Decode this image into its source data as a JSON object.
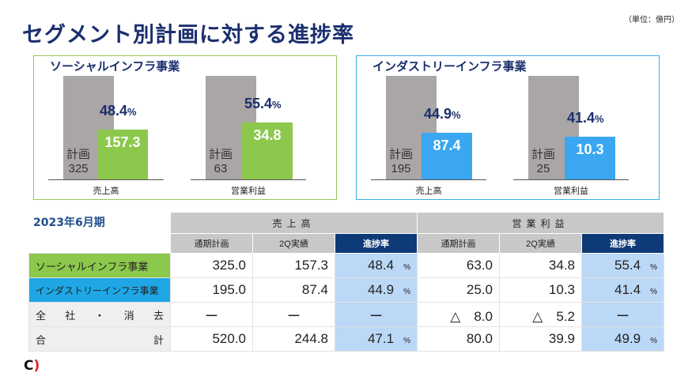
{
  "title": "セグメント別計画に対する進捗率",
  "unit": "（単位：億円）",
  "colors": {
    "social": "#8cc84b",
    "industry": "#3aa7f0",
    "plan": "#aaa6a6",
    "navy": "#0e3a78"
  },
  "chart_data": [
    {
      "type": "bar",
      "title": "ソーシャルインフラ事業",
      "plan_label": "計画",
      "groups": [
        {
          "label": "売上高",
          "plan": 325,
          "actual": 157.3,
          "progress": "48.4",
          "pct": "%"
        },
        {
          "label": "営業利益",
          "plan": 63,
          "actual": 34.8,
          "progress": "55.4",
          "pct": "%"
        }
      ]
    },
    {
      "type": "bar",
      "title": "インダストリーインフラ事業",
      "plan_label": "計画",
      "groups": [
        {
          "label": "売上高",
          "plan": 195,
          "actual": 87.4,
          "progress": "44.9",
          "pct": "%"
        },
        {
          "label": "営業利益",
          "plan": 25,
          "actual": 10.3,
          "progress": "41.4",
          "pct": "%"
        }
      ]
    }
  ],
  "table": {
    "period": "2023年6月期",
    "group_headers": [
      "売上高",
      "営業利益"
    ],
    "col_headers": [
      "通期計画",
      "2Q実績",
      "進捗率",
      "通期計画",
      "2Q実績",
      "進捗率"
    ],
    "pct": "%",
    "rows": [
      {
        "label": "ソーシャルインフラ事業",
        "cells": [
          "325.0",
          "157.3",
          "48.4",
          "63.0",
          "34.8",
          "55.4"
        ]
      },
      {
        "label": "インダストリーインフラ事業",
        "cells": [
          "195.0",
          "87.4",
          "44.9",
          "25.0",
          "10.3",
          "41.4"
        ]
      },
      {
        "label_parts": [
          "全",
          "社",
          "・",
          "消",
          "去"
        ],
        "cells": [
          "ー",
          "ー",
          "ー",
          "△　8.0",
          "△　5.2",
          "ー"
        ]
      },
      {
        "label_parts": [
          "合",
          "計"
        ],
        "cells": [
          "520.0",
          "244.8",
          "47.1",
          "80.0",
          "39.9",
          "49.9"
        ]
      }
    ]
  },
  "logo": "CJ"
}
